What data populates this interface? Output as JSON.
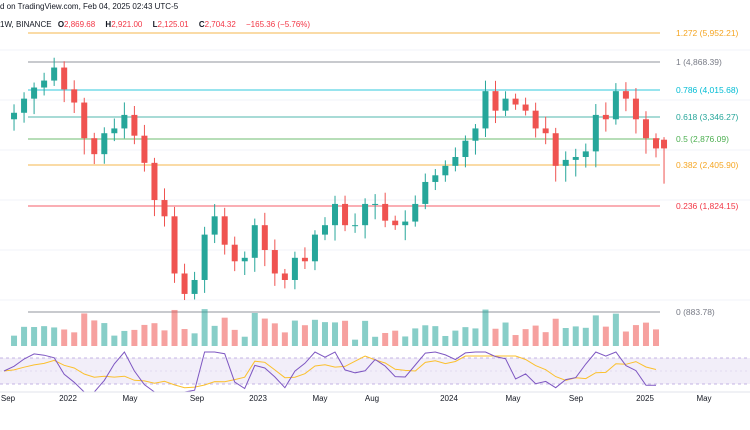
{
  "header": {
    "published": "d on TradingView.com, Feb 04, 2025 02:43 UTC-5",
    "interval": "1W, BINANCE",
    "o_label": "O",
    "o": "2,869.68",
    "h_label": "H",
    "h": "2,921.00",
    "l_label": "L",
    "l": "2,125.01",
    "c_label": "C",
    "c": "2,704.32",
    "change": "−165.36 (−5.76%)"
  },
  "fib_levels": [
    {
      "label": "1.272 (5,952.21)",
      "color": "#f5a623"
    },
    {
      "label": "1 (4,868.39)",
      "color": "#787b86"
    },
    {
      "label": "0.786 (4,015.68)",
      "color": "#00bcd4"
    },
    {
      "label": "0.618 (3,346.27)",
      "color": "#26a69a"
    },
    {
      "label": "0.5 (2,876.09)",
      "color": "#4caf50"
    },
    {
      "label": "0.382 (2,405.90)",
      "color": "#f5a623"
    },
    {
      "label": "0.236 (1,824.15)",
      "color": "#f23645"
    },
    {
      "label": "0 (883.78)",
      "color": "#787b86"
    }
  ],
  "x_axis": [
    "Sep",
    "2022",
    "May",
    "Sep",
    "2023",
    "May",
    "Aug",
    "2024",
    "May",
    "Sep",
    "2025",
    "May"
  ],
  "colors": {
    "up": "#26a69a",
    "down": "#ef5350",
    "rsi": "#7e57c2",
    "rsi_ma": "#fbc02d"
  },
  "chart_data": {
    "type": "candlestick",
    "symbol_interval": "1W",
    "exchange": "BINANCE",
    "log_scale": true,
    "last_candle": {
      "open": 2869.68,
      "high": 2921.0,
      "low": 2125.01,
      "close": 2704.32
    },
    "fib_retracement": [
      {
        "level": 1.272,
        "price": 5952.21
      },
      {
        "level": 1,
        "price": 4868.39
      },
      {
        "level": 0.786,
        "price": 4015.68
      },
      {
        "level": 0.618,
        "price": 3346.27
      },
      {
        "level": 0.5,
        "price": 2876.09
      },
      {
        "level": 0.382,
        "price": 2405.9
      },
      {
        "level": 0.236,
        "price": 1824.15
      },
      {
        "level": 0,
        "price": 883.78
      }
    ],
    "price_path": [
      3300,
      3450,
      3800,
      4100,
      4300,
      4700,
      4050,
      3700,
      2900,
      2600,
      3000,
      3100,
      3400,
      2950,
      2450,
      1900,
      1700,
      1150,
      1000,
      1100,
      1500,
      1700,
      1400,
      1250,
      1280,
      1600,
      1350,
      1150,
      1100,
      1280,
      1250,
      1500,
      1600,
      1850,
      1600,
      1600,
      1850,
      1850,
      1650,
      1600,
      1640,
      1850,
      2150,
      2250,
      2400,
      2550,
      2850,
      3100,
      4000,
      3500,
      3800,
      3650,
      3500,
      3100,
      3000,
      2400,
      2500,
      2550,
      2650,
      3400,
      3300,
      4000,
      3800,
      3300,
      2900,
      2704
    ],
    "indicators": [
      "Volume",
      "RSI"
    ]
  }
}
